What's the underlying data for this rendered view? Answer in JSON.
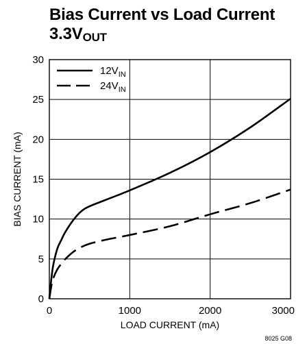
{
  "chart_data": {
    "type": "line",
    "title": "Bias Current vs Load Current",
    "subtitle": {
      "main": "3.3V",
      "sub": "OUT"
    },
    "xlabel": "LOAD CURRENT (mA)",
    "ylabel": "BIAS CURRENT (mA)",
    "xlim": [
      0,
      3000
    ],
    "ylim": [
      0,
      30
    ],
    "xticks": [
      0,
      1000,
      2000,
      3000
    ],
    "yticks": [
      0,
      5,
      10,
      15,
      20,
      25,
      30
    ],
    "grid": true,
    "legend_position": "top-left",
    "figure_id": "8025 G08",
    "series": [
      {
        "name": "12V",
        "name_sub": "IN",
        "style": "solid",
        "x": [
          0,
          25,
          50,
          100,
          150,
          200,
          300,
          400,
          500,
          700,
          1000,
          1500,
          2000,
          2500,
          3000
        ],
        "y": [
          0,
          2.5,
          4.3,
          6.3,
          7.4,
          8.4,
          9.9,
          11.0,
          11.6,
          12.4,
          13.6,
          15.8,
          18.4,
          21.5,
          25.1
        ]
      },
      {
        "name": "24V",
        "name_sub": "IN",
        "style": "dashed",
        "x": [
          0,
          25,
          50,
          100,
          150,
          200,
          300,
          400,
          500,
          700,
          1000,
          1500,
          2000,
          2500,
          3000
        ],
        "y": [
          0,
          1.6,
          2.6,
          3.7,
          4.4,
          5.0,
          5.9,
          6.5,
          6.9,
          7.4,
          8.0,
          9.1,
          10.6,
          12.0,
          13.7
        ]
      }
    ]
  }
}
